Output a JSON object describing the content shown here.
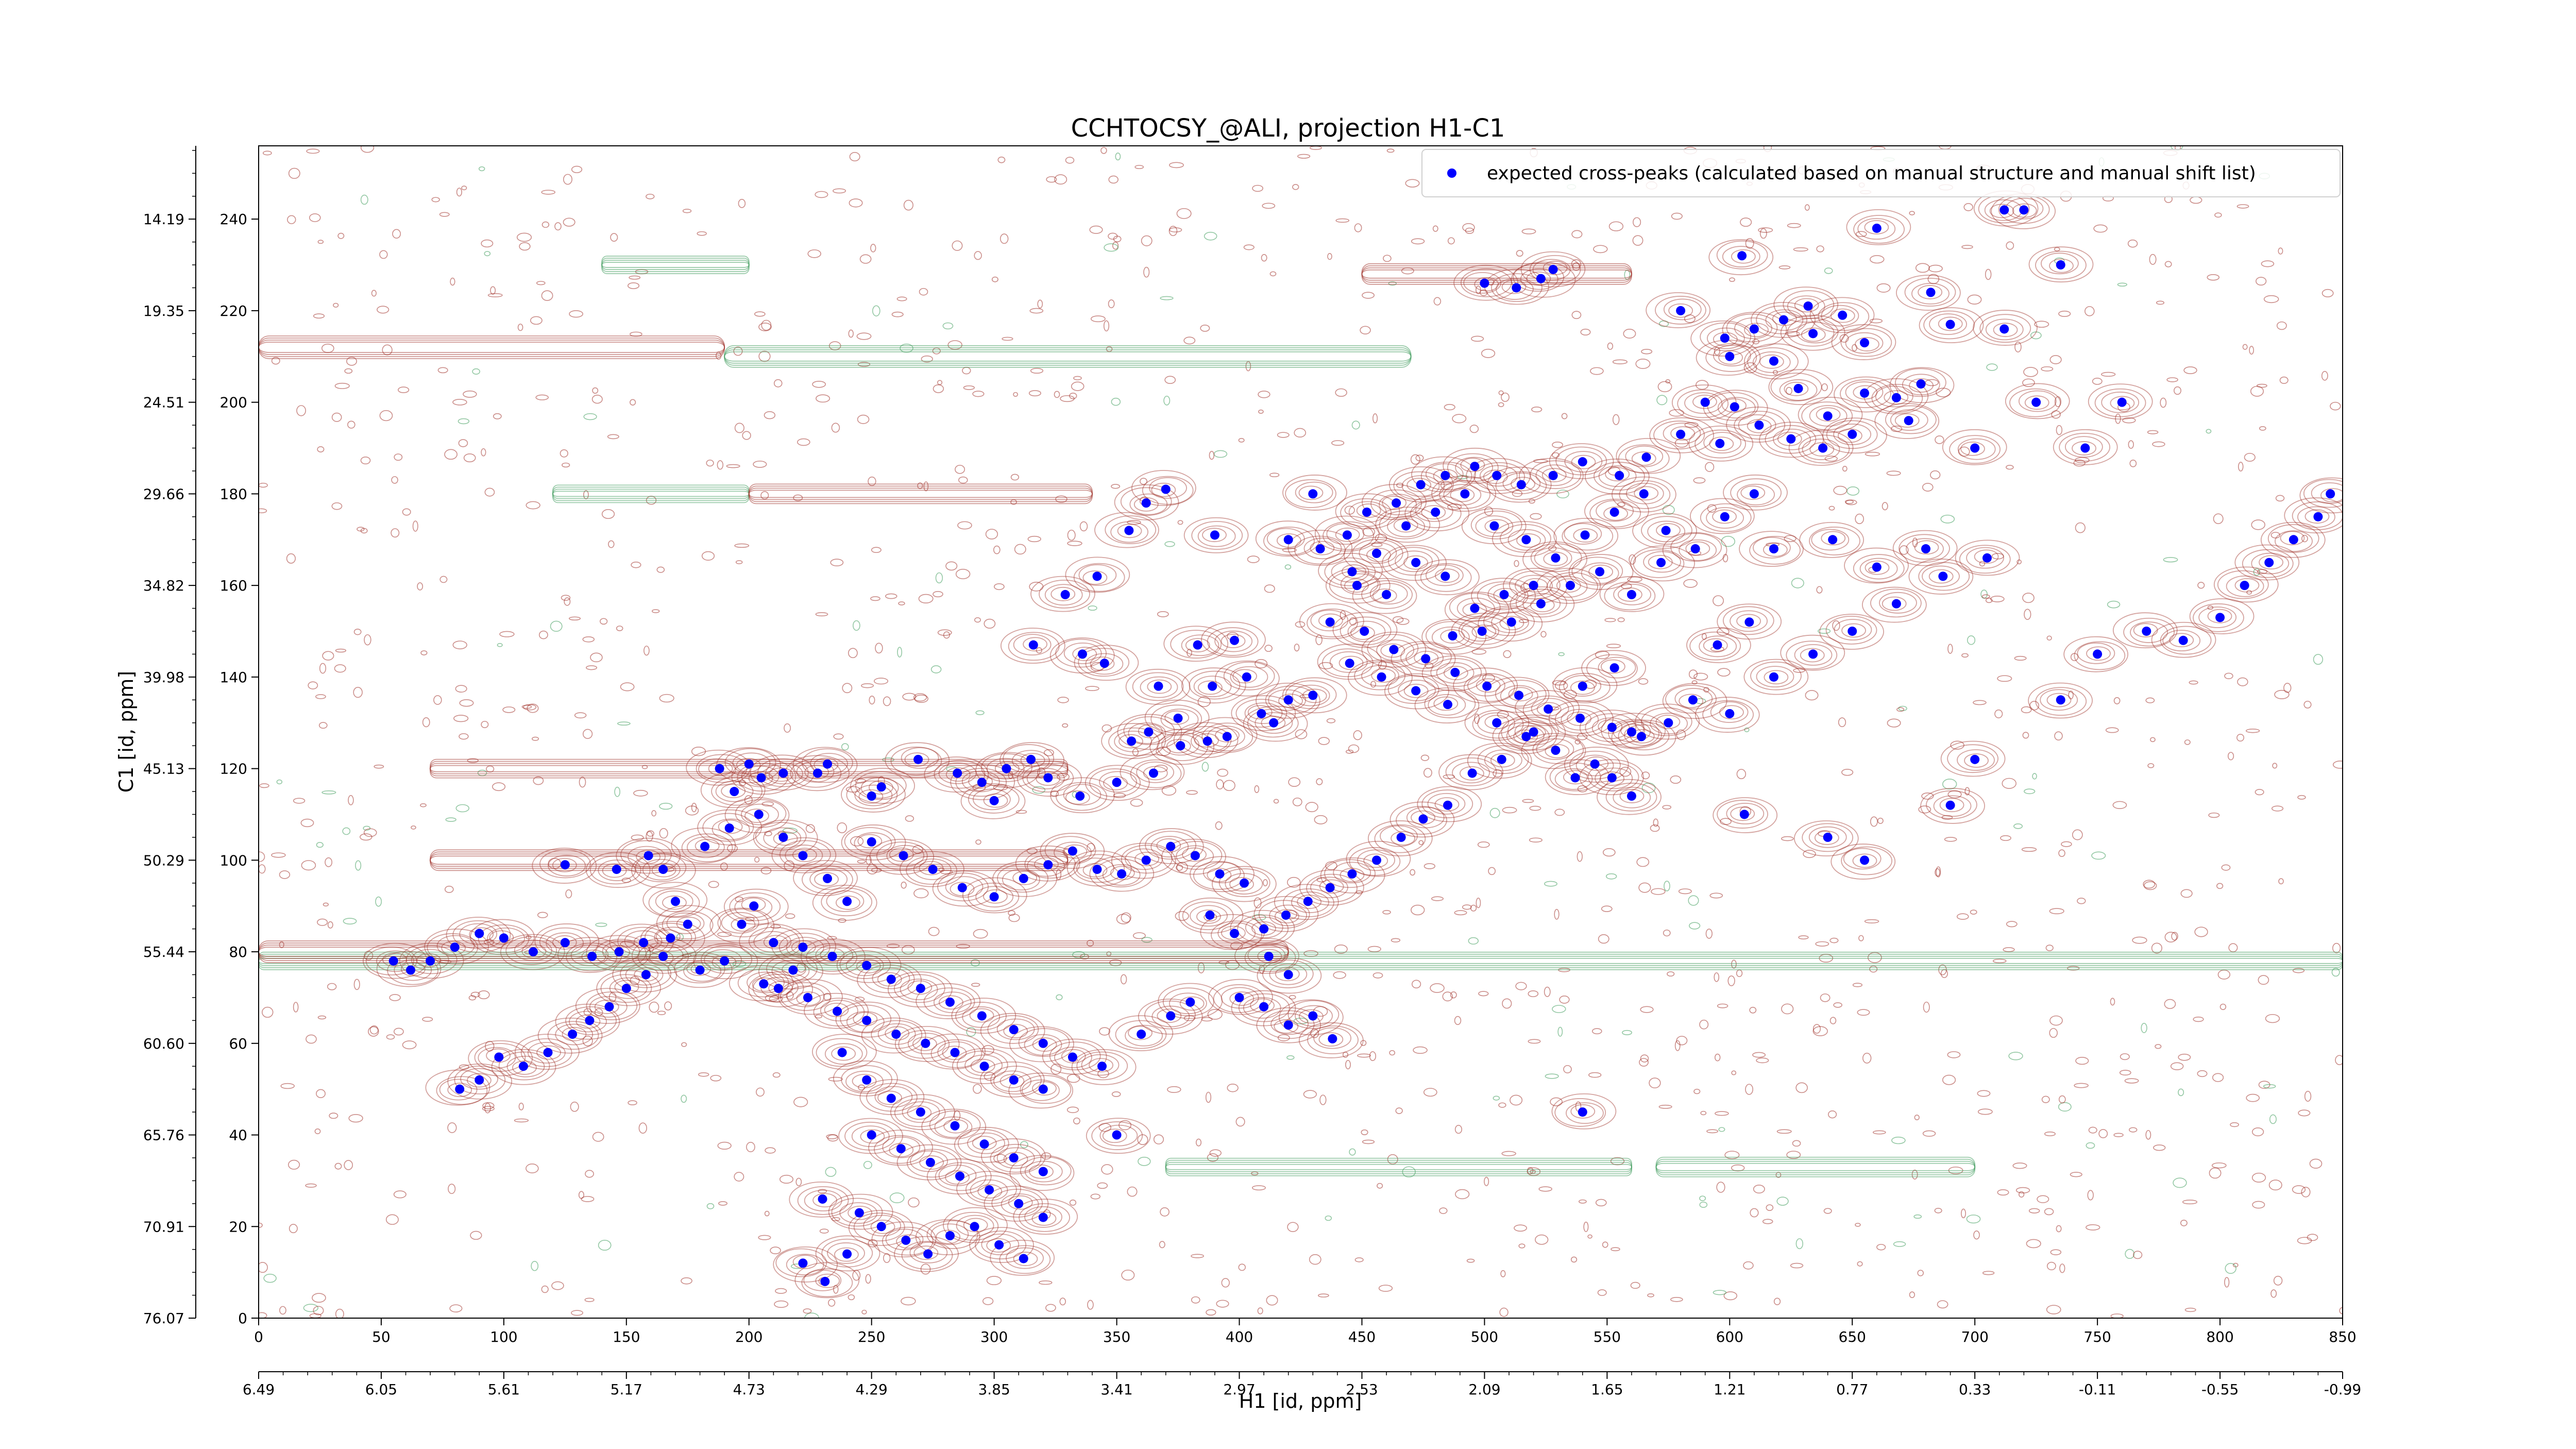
{
  "chart_data": {
    "type": "scatter",
    "title": "CCHTOCSY_@ALI, projection H1-C1",
    "xlabel": "H1 [id, ppm]",
    "ylabel": "C1 [id, ppm]",
    "xlim": [
      0,
      850
    ],
    "ylim": [
      0,
      256
    ],
    "x_ticks": [
      0,
      50,
      100,
      150,
      200,
      250,
      300,
      350,
      400,
      450,
      500,
      550,
      600,
      650,
      700,
      750,
      800,
      850
    ],
    "y_ticks": [
      0,
      20,
      40,
      60,
      80,
      100,
      120,
      140,
      160,
      180,
      200,
      220,
      240
    ],
    "x_secondary_ticks": [
      "6.49",
      "6.05",
      "5.61",
      "5.17",
      "4.73",
      "4.29",
      "3.85",
      "3.41",
      "2.97",
      "2.53",
      "2.09",
      "1.65",
      "1.21",
      "0.77",
      "0.33",
      "-0.11",
      "-0.55",
      "-0.99"
    ],
    "y_secondary_ticks": [
      "76.07",
      "70.91",
      "65.76",
      "60.60",
      "55.44",
      "50.29",
      "45.13",
      "39.98",
      "34.82",
      "29.66",
      "24.51",
      "19.35",
      "14.19"
    ],
    "legend_position": "top-right",
    "grid": false,
    "colors": {
      "peaks": "#0000ff",
      "positive_contours": "#a0322a",
      "negative_contours": "#3c9a5a"
    },
    "series": [
      {
        "name": "expected cross-peaks (calculated based on manual structure and manual shift list)",
        "points": [
          [
            513,
            225
          ],
          [
            500,
            226
          ],
          [
            523,
            227
          ],
          [
            605,
            232
          ],
          [
            528,
            229
          ],
          [
            660,
            238
          ],
          [
            720,
            242
          ],
          [
            712,
            242
          ],
          [
            735,
            230
          ],
          [
            682,
            224
          ],
          [
            712,
            216
          ],
          [
            690,
            217
          ],
          [
            580,
            220
          ],
          [
            598,
            214
          ],
          [
            610,
            216
          ],
          [
            622,
            218
          ],
          [
            634,
            215
          ],
          [
            646,
            219
          ],
          [
            655,
            213
          ],
          [
            632,
            221
          ],
          [
            618,
            209
          ],
          [
            600,
            210
          ],
          [
            590,
            200
          ],
          [
            602,
            199
          ],
          [
            628,
            203
          ],
          [
            640,
            197
          ],
          [
            655,
            202
          ],
          [
            668,
            201
          ],
          [
            678,
            204
          ],
          [
            673,
            196
          ],
          [
            650,
            193
          ],
          [
            638,
            190
          ],
          [
            625,
            192
          ],
          [
            612,
            195
          ],
          [
            596,
            191
          ],
          [
            580,
            193
          ],
          [
            566,
            188
          ],
          [
            555,
            184
          ],
          [
            540,
            187
          ],
          [
            528,
            184
          ],
          [
            515,
            182
          ],
          [
            505,
            184
          ],
          [
            496,
            186
          ],
          [
            484,
            184
          ],
          [
            474,
            182
          ],
          [
            464,
            178
          ],
          [
            452,
            176
          ],
          [
            444,
            171
          ],
          [
            433,
            168
          ],
          [
            446,
            163
          ],
          [
            456,
            167
          ],
          [
            468,
            173
          ],
          [
            480,
            176
          ],
          [
            492,
            180
          ],
          [
            504,
            173
          ],
          [
            517,
            170
          ],
          [
            529,
            166
          ],
          [
            541,
            171
          ],
          [
            553,
            176
          ],
          [
            565,
            180
          ],
          [
            574,
            172
          ],
          [
            586,
            168
          ],
          [
            598,
            175
          ],
          [
            610,
            180
          ],
          [
            520,
            160
          ],
          [
            508,
            158
          ],
          [
            496,
            155
          ],
          [
            484,
            162
          ],
          [
            472,
            165
          ],
          [
            460,
            158
          ],
          [
            448,
            160
          ],
          [
            437,
            152
          ],
          [
            487,
            149
          ],
          [
            499,
            150
          ],
          [
            511,
            152
          ],
          [
            523,
            156
          ],
          [
            535,
            160
          ],
          [
            547,
            163
          ],
          [
            560,
            158
          ],
          [
            572,
            165
          ],
          [
            618,
            168
          ],
          [
            642,
            170
          ],
          [
            660,
            164
          ],
          [
            680,
            168
          ],
          [
            383,
            147
          ],
          [
            389,
            138
          ],
          [
            398,
            148
          ],
          [
            403,
            140
          ],
          [
            414,
            130
          ],
          [
            395,
            127
          ],
          [
            387,
            126
          ],
          [
            375,
            131
          ],
          [
            367,
            138
          ],
          [
            345,
            143
          ],
          [
            336,
            145
          ],
          [
            316,
            147
          ],
          [
            329,
            158
          ],
          [
            342,
            162
          ],
          [
            355,
            172
          ],
          [
            362,
            178
          ],
          [
            370,
            181
          ],
          [
            390,
            171
          ],
          [
            420,
            170
          ],
          [
            430,
            180
          ],
          [
            356,
            126
          ],
          [
            363,
            128
          ],
          [
            376,
            125
          ],
          [
            409,
            132
          ],
          [
            420,
            135
          ],
          [
            430,
            136
          ],
          [
            445,
            143
          ],
          [
            458,
            140
          ],
          [
            472,
            137
          ],
          [
            485,
            134
          ],
          [
            505,
            130
          ],
          [
            520,
            128
          ],
          [
            540,
            138
          ],
          [
            553,
            142
          ],
          [
            560,
            128
          ],
          [
            575,
            130
          ],
          [
            585,
            135
          ],
          [
            600,
            132
          ],
          [
            618,
            140
          ],
          [
            634,
            145
          ],
          [
            650,
            150
          ],
          [
            668,
            156
          ],
          [
            687,
            162
          ],
          [
            705,
            166
          ],
          [
            745,
            190
          ],
          [
            760,
            200
          ],
          [
            725,
            200
          ],
          [
            700,
            190
          ],
          [
            250,
            114
          ],
          [
            254,
            116
          ],
          [
            269,
            122
          ],
          [
            285,
            119
          ],
          [
            295,
            117
          ],
          [
            300,
            113
          ],
          [
            305,
            120
          ],
          [
            315,
            122
          ],
          [
            322,
            118
          ],
          [
            335,
            114
          ],
          [
            350,
            117
          ],
          [
            365,
            119
          ],
          [
            228,
            119
          ],
          [
            232,
            121
          ],
          [
            214,
            119
          ],
          [
            205,
            118
          ],
          [
            200,
            121
          ],
          [
            194,
            115
          ],
          [
            188,
            120
          ],
          [
            125,
            99
          ],
          [
            146,
            98
          ],
          [
            159,
            101
          ],
          [
            165,
            98
          ],
          [
            170,
            91
          ],
          [
            175,
            86
          ],
          [
            168,
            83
          ],
          [
            157,
            82
          ],
          [
            147,
            80
          ],
          [
            136,
            79
          ],
          [
            125,
            82
          ],
          [
            112,
            80
          ],
          [
            100,
            83
          ],
          [
            90,
            84
          ],
          [
            80,
            81
          ],
          [
            70,
            78
          ],
          [
            62,
            76
          ],
          [
            55,
            78
          ],
          [
            165,
            79
          ],
          [
            158,
            75
          ],
          [
            150,
            72
          ],
          [
            143,
            68
          ],
          [
            135,
            65
          ],
          [
            128,
            62
          ],
          [
            118,
            58
          ],
          [
            108,
            55
          ],
          [
            98,
            57
          ],
          [
            90,
            52
          ],
          [
            82,
            50
          ],
          [
            210,
            82
          ],
          [
            222,
            81
          ],
          [
            234,
            79
          ],
          [
            248,
            77
          ],
          [
            258,
            74
          ],
          [
            270,
            72
          ],
          [
            282,
            69
          ],
          [
            295,
            66
          ],
          [
            308,
            63
          ],
          [
            320,
            60
          ],
          [
            332,
            57
          ],
          [
            344,
            55
          ],
          [
            212,
            72
          ],
          [
            224,
            70
          ],
          [
            236,
            67
          ],
          [
            248,
            65
          ],
          [
            260,
            62
          ],
          [
            272,
            60
          ],
          [
            284,
            58
          ],
          [
            296,
            55
          ],
          [
            308,
            52
          ],
          [
            320,
            50
          ],
          [
            238,
            58
          ],
          [
            248,
            52
          ],
          [
            258,
            48
          ],
          [
            270,
            45
          ],
          [
            284,
            42
          ],
          [
            296,
            38
          ],
          [
            308,
            35
          ],
          [
            320,
            32
          ],
          [
            250,
            40
          ],
          [
            262,
            37
          ],
          [
            274,
            34
          ],
          [
            286,
            31
          ],
          [
            298,
            28
          ],
          [
            310,
            25
          ],
          [
            320,
            22
          ],
          [
            230,
            26
          ],
          [
            245,
            23
          ],
          [
            254,
            20
          ],
          [
            264,
            17
          ],
          [
            273,
            14
          ],
          [
            282,
            18
          ],
          [
            292,
            20
          ],
          [
            302,
            16
          ],
          [
            312,
            13
          ],
          [
            222,
            12
          ],
          [
            231,
            8
          ],
          [
            240,
            14
          ],
          [
            350,
            40
          ],
          [
            360,
            62
          ],
          [
            372,
            66
          ],
          [
            380,
            69
          ],
          [
            400,
            70
          ],
          [
            410,
            68
          ],
          [
            420,
            64
          ],
          [
            430,
            66
          ],
          [
            438,
            61
          ],
          [
            250,
            104
          ],
          [
            263,
            101
          ],
          [
            275,
            98
          ],
          [
            287,
            94
          ],
          [
            300,
            92
          ],
          [
            312,
            96
          ],
          [
            322,
            99
          ],
          [
            332,
            102
          ],
          [
            342,
            98
          ],
          [
            352,
            97
          ],
          [
            362,
            100
          ],
          [
            372,
            103
          ],
          [
            382,
            101
          ],
          [
            392,
            97
          ],
          [
            402,
            95
          ],
          [
            182,
            103
          ],
          [
            192,
            107
          ],
          [
            204,
            110
          ],
          [
            214,
            105
          ],
          [
            222,
            101
          ],
          [
            232,
            96
          ],
          [
            240,
            91
          ],
          [
            197,
            86
          ],
          [
            202,
            90
          ],
          [
            190,
            78
          ],
          [
            180,
            76
          ],
          [
            206,
            73
          ],
          [
            218,
            76
          ],
          [
            388,
            88
          ],
          [
            398,
            84
          ],
          [
            412,
            79
          ],
          [
            420,
            75
          ],
          [
            540,
            45
          ],
          [
            606,
            110
          ],
          [
            640,
            105
          ],
          [
            655,
            100
          ],
          [
            690,
            112
          ],
          [
            700,
            122
          ],
          [
            735,
            135
          ],
          [
            750,
            145
          ],
          [
            770,
            150
          ],
          [
            785,
            148
          ],
          [
            800,
            153
          ],
          [
            810,
            160
          ],
          [
            820,
            165
          ],
          [
            830,
            170
          ],
          [
            840,
            175
          ],
          [
            845,
            180
          ],
          [
            595,
            147
          ],
          [
            608,
            152
          ],
          [
            560,
            114
          ],
          [
            552,
            118
          ],
          [
            545,
            121
          ],
          [
            537,
            118
          ],
          [
            529,
            124
          ],
          [
            517,
            127
          ],
          [
            507,
            122
          ],
          [
            495,
            119
          ],
          [
            485,
            112
          ],
          [
            475,
            109
          ],
          [
            466,
            105
          ],
          [
            456,
            100
          ],
          [
            446,
            97
          ],
          [
            437,
            94
          ],
          [
            428,
            91
          ],
          [
            419,
            88
          ],
          [
            410,
            85
          ],
          [
            451,
            150
          ],
          [
            463,
            146
          ],
          [
            476,
            144
          ],
          [
            488,
            141
          ],
          [
            501,
            138
          ],
          [
            514,
            136
          ],
          [
            526,
            133
          ],
          [
            539,
            131
          ],
          [
            552,
            129
          ],
          [
            564,
            127
          ]
        ]
      }
    ]
  }
}
